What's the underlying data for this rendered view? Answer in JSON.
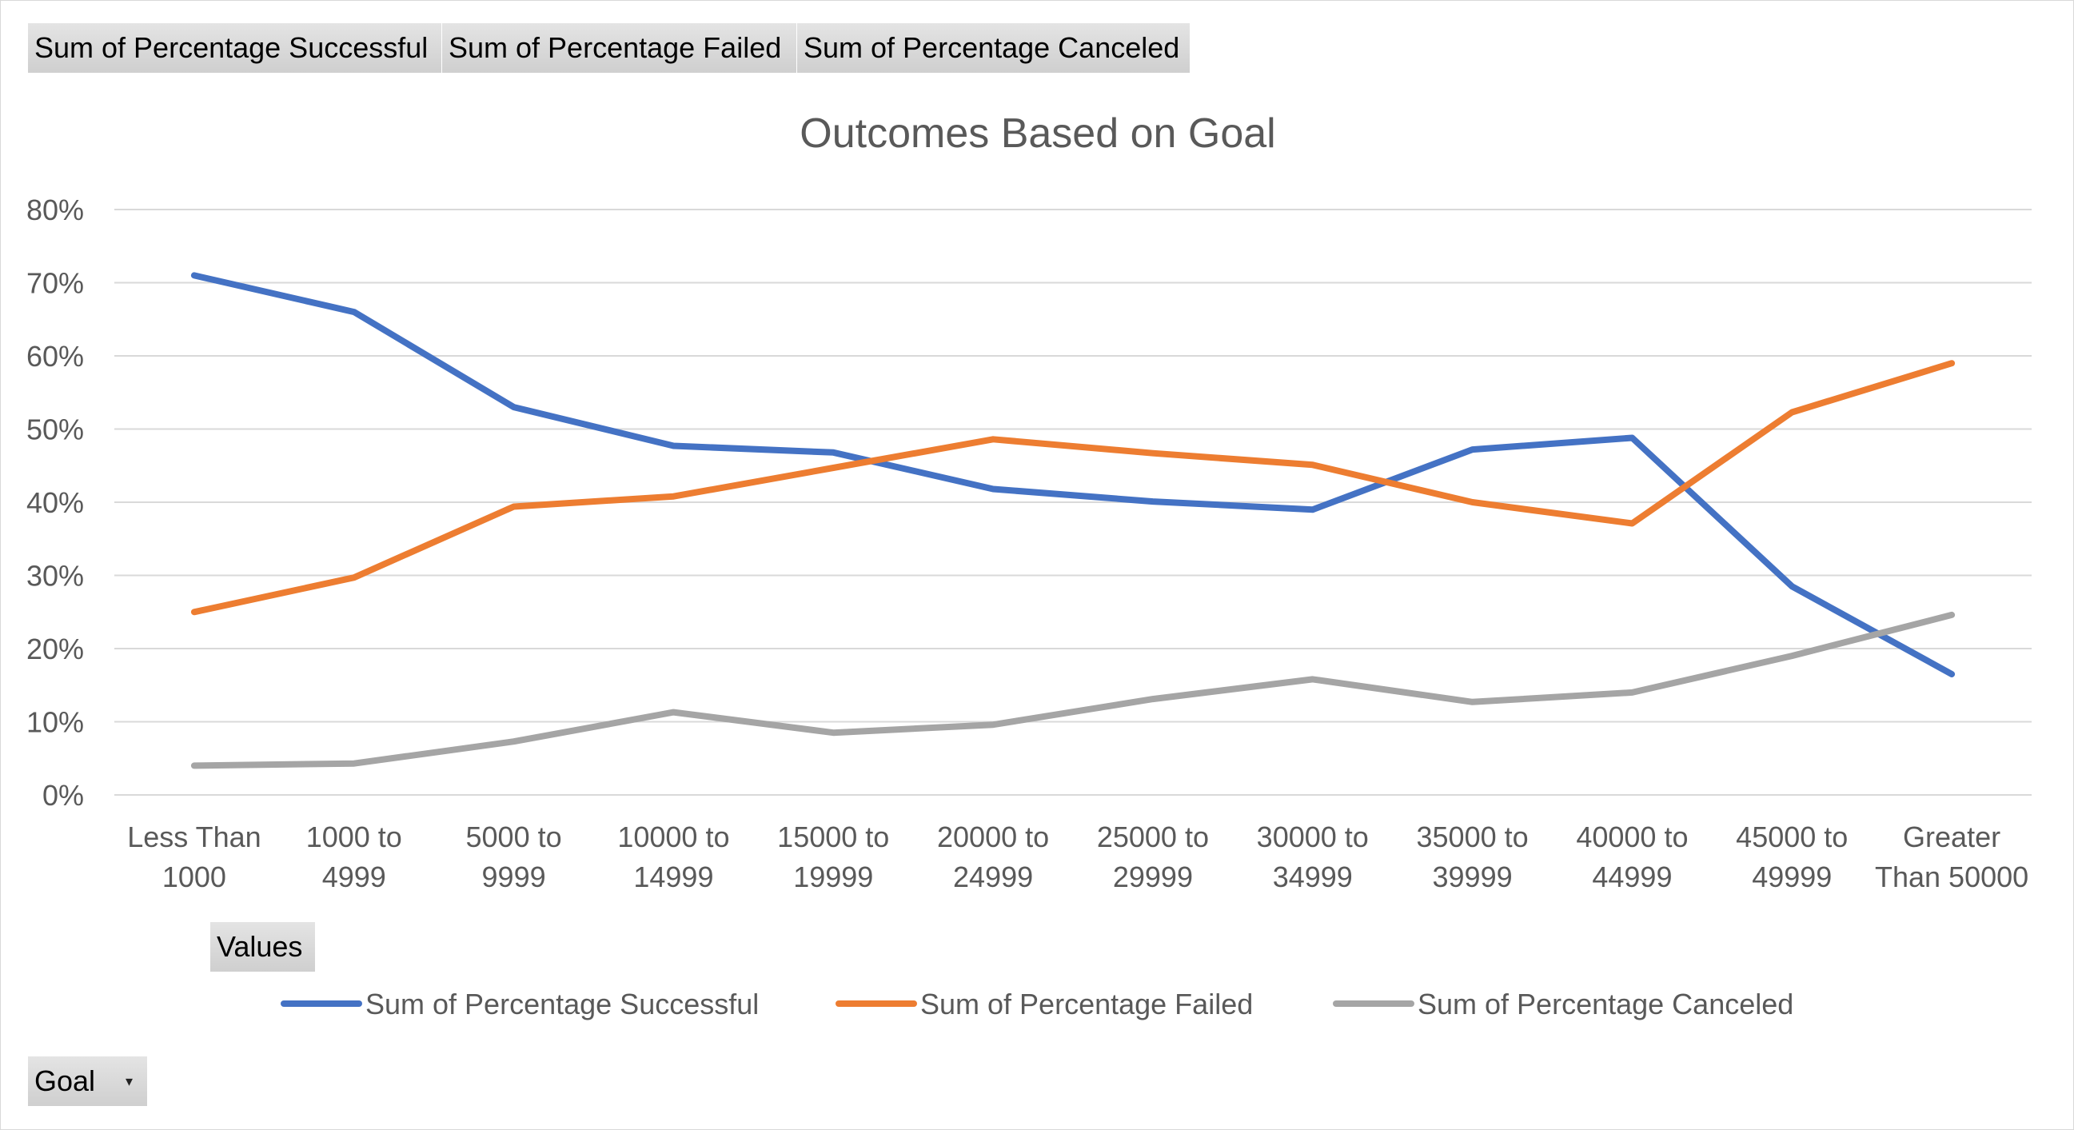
{
  "top_field_buttons": [
    {
      "label": "Sum of Percentage  Successful"
    },
    {
      "label": "Sum of Percentage  Failed"
    },
    {
      "label": "Sum of Percentage  Canceled"
    }
  ],
  "values_button": {
    "label": "Values"
  },
  "goal_filter": {
    "label": "Goal",
    "icon": "dropdown-arrow-icon"
  },
  "chart_data": {
    "type": "line",
    "title": "Outcomes Based on Goal",
    "xlabel": "",
    "ylabel": "",
    "categories": [
      [
        "Less Than",
        "1000"
      ],
      [
        "1000 to",
        "4999"
      ],
      [
        "5000 to",
        "9999"
      ],
      [
        "10000 to",
        "14999"
      ],
      [
        "15000 to",
        "19999"
      ],
      [
        "20000 to",
        "24999"
      ],
      [
        "25000 to",
        "29999"
      ],
      [
        "30000 to",
        "34999"
      ],
      [
        "35000 to",
        "39999"
      ],
      [
        "40000 to",
        "44999"
      ],
      [
        "45000 to",
        "49999"
      ],
      [
        "Greater",
        "Than 50000"
      ]
    ],
    "ylim": [
      0,
      0.8
    ],
    "yticks": [
      0,
      0.1,
      0.2,
      0.3,
      0.4,
      0.5,
      0.6,
      0.7,
      0.8
    ],
    "ytick_labels": [
      "0%",
      "10%",
      "20%",
      "30%",
      "40%",
      "50%",
      "60%",
      "70%",
      "80%"
    ],
    "grid": true,
    "legend_position": "bottom",
    "series": [
      {
        "name": "Sum of Percentage Successful",
        "color": "#4472c4",
        "values": [
          0.71,
          0.66,
          0.53,
          0.477,
          0.468,
          0.418,
          0.401,
          0.39,
          0.472,
          0.488,
          0.285,
          0.165
        ]
      },
      {
        "name": "Sum of Percentage Failed",
        "color": "#ed7d31",
        "values": [
          0.25,
          0.297,
          0.394,
          0.408,
          0.447,
          0.486,
          0.467,
          0.451,
          0.4,
          0.371,
          0.523,
          0.59
        ]
      },
      {
        "name": "Sum of Percentage Canceled",
        "color": "#a5a5a5",
        "values": [
          0.04,
          0.043,
          0.073,
          0.113,
          0.085,
          0.096,
          0.131,
          0.158,
          0.127,
          0.14,
          0.19,
          0.246
        ]
      }
    ]
  }
}
